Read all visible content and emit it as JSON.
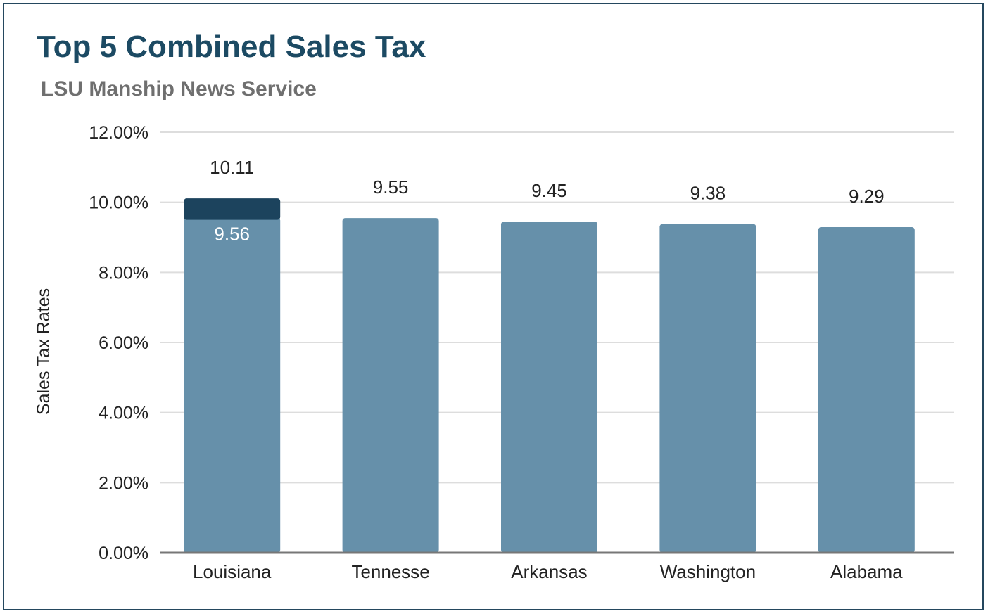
{
  "chart_data": {
    "type": "bar",
    "title": "Top 5 Combined Sales Tax",
    "subtitle": "LSU Manship News Service",
    "xlabel": "",
    "ylabel": "Sales Tax Rates",
    "categories": [
      "Louisiana",
      "Tennesse",
      "Arkansas",
      "Washington",
      "Alabama"
    ],
    "series": [
      {
        "values": [
          9.56,
          9.55,
          9.45,
          9.38,
          9.29
        ],
        "color": "#6690aa"
      },
      {
        "values": [
          0.55,
          0,
          0,
          0,
          0
        ],
        "color": "#1c435d"
      }
    ],
    "data_labels": {
      "totals": [
        "10.11",
        "9.55",
        "9.45",
        "9.38",
        "9.29"
      ],
      "inner": [
        "9.56",
        "",
        "",
        "",
        ""
      ]
    },
    "ylim": [
      0,
      12
    ],
    "yticks": [
      "0.00%",
      "2.00%",
      "4.00%",
      "6.00%",
      "8.00%",
      "10.00%",
      "12.00%"
    ],
    "grid": true,
    "legend": "none",
    "colors": {
      "title": "#1c4a63",
      "subtitle": "#6f6f6f",
      "gridline": "#dddddd",
      "baseline": "#777777",
      "frame": "#24475e"
    }
  }
}
